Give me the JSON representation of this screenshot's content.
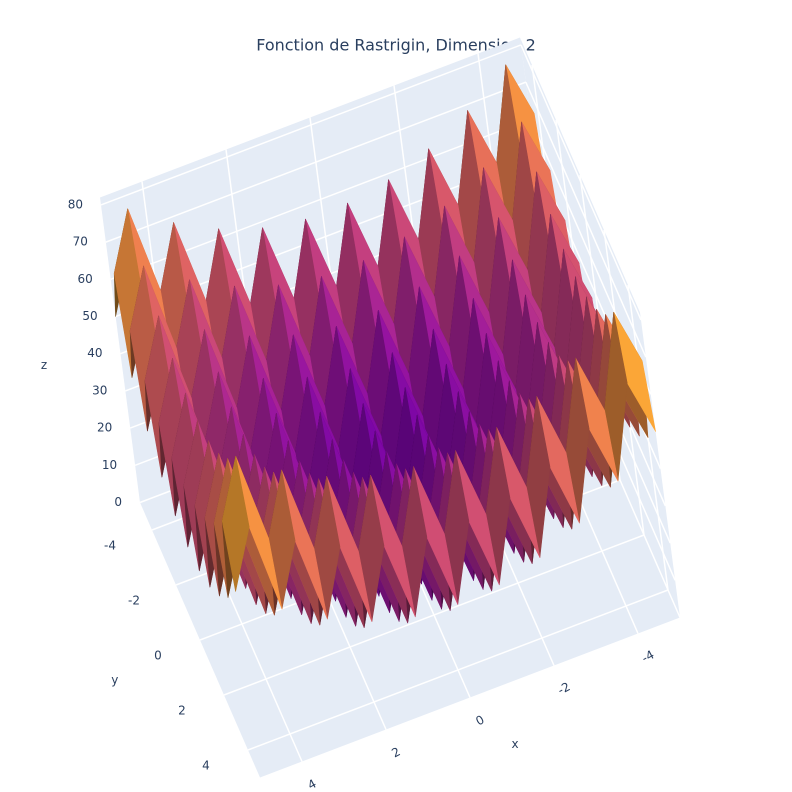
{
  "chart_data": {
    "type": "surface",
    "title": "Fonction de Rastrigin, Dimension 2",
    "xlabel": "x",
    "ylabel": "y",
    "zlabel": "z",
    "x": [
      -5,
      -4.5,
      -4,
      -3.5,
      -3,
      -2.5,
      -2,
      -1.5,
      -1,
      -0.5,
      0,
      0.5,
      1,
      1.5,
      2,
      2.5,
      3,
      3.5,
      4,
      4.5,
      5
    ],
    "y": [
      -5,
      -4.5,
      -4,
      -3.5,
      -3,
      -2.5,
      -2,
      -1.5,
      -1,
      -0.5,
      0,
      0.5,
      1,
      1.5,
      2,
      2.5,
      3,
      3.5,
      4,
      4.5,
      5
    ],
    "z": [
      [
        50,
        65.25,
        41,
        57.25,
        34,
        51.25,
        29,
        47.25,
        26,
        45.25,
        25,
        45.25,
        26,
        47.25,
        29,
        51.25,
        34,
        57.25,
        41,
        65.25,
        50
      ],
      [
        65.25,
        80.5,
        56.25,
        72.5,
        49.25,
        66.5,
        44.25,
        62.5,
        41.25,
        60.5,
        40.25,
        60.5,
        41.25,
        62.5,
        44.25,
        66.5,
        49.25,
        72.5,
        56.25,
        80.5,
        65.25
      ],
      [
        41,
        56.25,
        32,
        48.25,
        25,
        42.25,
        20,
        38.25,
        17,
        36.25,
        16,
        36.25,
        17,
        38.25,
        20,
        42.25,
        25,
        48.25,
        32,
        56.25,
        41
      ],
      [
        57.25,
        72.5,
        48.25,
        64.5,
        41.25,
        58.5,
        36.25,
        54.5,
        33.25,
        52.5,
        32.25,
        52.5,
        33.25,
        54.5,
        36.25,
        58.5,
        41.25,
        64.5,
        48.25,
        72.5,
        57.25
      ],
      [
        34,
        49.25,
        25,
        41.25,
        18,
        35.25,
        13,
        31.25,
        10,
        29.25,
        9,
        29.25,
        10,
        31.25,
        13,
        35.25,
        18,
        41.25,
        25,
        49.25,
        34
      ],
      [
        51.25,
        66.5,
        42.25,
        58.5,
        35.25,
        52.5,
        30.25,
        48.5,
        27.25,
        46.5,
        26.25,
        46.5,
        27.25,
        48.5,
        30.25,
        52.5,
        35.25,
        58.5,
        42.25,
        66.5,
        51.25
      ],
      [
        29,
        44.25,
        20,
        36.25,
        13,
        30.25,
        8,
        26.25,
        5,
        24.25,
        4,
        24.25,
        5,
        26.25,
        8,
        30.25,
        13,
        36.25,
        20,
        44.25,
        29
      ],
      [
        47.25,
        62.5,
        38.25,
        54.5,
        31.25,
        48.5,
        26.25,
        44.5,
        23.25,
        42.5,
        22.25,
        42.5,
        23.25,
        44.5,
        26.25,
        48.5,
        31.25,
        54.5,
        38.25,
        62.5,
        47.25
      ],
      [
        26,
        41.25,
        17,
        33.25,
        10,
        27.25,
        5,
        23.25,
        2,
        21.25,
        1,
        21.25,
        2,
        23.25,
        5,
        27.25,
        10,
        33.25,
        17,
        41.25,
        26
      ],
      [
        45.25,
        60.5,
        36.25,
        52.5,
        29.25,
        46.5,
        24.25,
        42.5,
        21.25,
        40.5,
        20.25,
        40.5,
        21.25,
        42.5,
        24.25,
        46.5,
        29.25,
        52.5,
        36.25,
        60.5,
        45.25
      ],
      [
        25,
        40.25,
        16,
        32.25,
        9,
        26.25,
        4,
        22.25,
        1,
        20.25,
        0,
        20.25,
        1,
        22.25,
        4,
        26.25,
        9,
        32.25,
        16,
        40.25,
        25
      ],
      [
        45.25,
        60.5,
        36.25,
        52.5,
        29.25,
        46.5,
        24.25,
        42.5,
        21.25,
        40.5,
        20.25,
        40.5,
        21.25,
        42.5,
        24.25,
        46.5,
        29.25,
        52.5,
        36.25,
        60.5,
        45.25
      ],
      [
        26,
        41.25,
        17,
        33.25,
        10,
        27.25,
        5,
        23.25,
        2,
        21.25,
        1,
        21.25,
        2,
        23.25,
        5,
        27.25,
        10,
        33.25,
        17,
        41.25,
        26
      ],
      [
        47.25,
        62.5,
        38.25,
        54.5,
        31.25,
        48.5,
        26.25,
        44.5,
        23.25,
        42.5,
        22.25,
        42.5,
        23.25,
        44.5,
        26.25,
        48.5,
        31.25,
        54.5,
        38.25,
        62.5,
        47.25
      ],
      [
        29,
        44.25,
        20,
        36.25,
        13,
        30.25,
        8,
        26.25,
        5,
        24.25,
        4,
        24.25,
        5,
        26.25,
        8,
        30.25,
        13,
        36.25,
        20,
        44.25,
        29
      ],
      [
        51.25,
        66.5,
        42.25,
        58.5,
        35.25,
        52.5,
        30.25,
        48.5,
        27.25,
        46.5,
        26.25,
        46.5,
        27.25,
        48.5,
        30.25,
        52.5,
        35.25,
        58.5,
        42.25,
        66.5,
        51.25
      ],
      [
        34,
        49.25,
        25,
        41.25,
        18,
        35.25,
        13,
        31.25,
        10,
        29.25,
        9,
        29.25,
        10,
        31.25,
        13,
        35.25,
        18,
        41.25,
        25,
        49.25,
        34
      ],
      [
        57.25,
        72.5,
        48.25,
        64.5,
        41.25,
        58.5,
        36.25,
        54.5,
        33.25,
        52.5,
        32.25,
        52.5,
        33.25,
        54.5,
        36.25,
        58.5,
        41.25,
        64.5,
        48.25,
        72.5,
        57.25
      ],
      [
        41,
        56.25,
        32,
        48.25,
        25,
        42.25,
        20,
        38.25,
        17,
        36.25,
        16,
        36.25,
        17,
        38.25,
        20,
        42.25,
        25,
        48.25,
        32,
        56.25,
        41
      ],
      [
        65.25,
        80.5,
        56.25,
        72.5,
        49.25,
        66.5,
        44.25,
        62.5,
        41.25,
        60.5,
        40.25,
        60.5,
        41.25,
        62.5,
        44.25,
        66.5,
        49.25,
        72.5,
        56.25,
        80.5,
        65.25
      ],
      [
        50,
        65.25,
        41,
        57.25,
        34,
        51.25,
        29,
        47.25,
        26,
        45.25,
        25,
        45.25,
        26,
        47.25,
        29,
        51.25,
        34,
        57.25,
        41,
        65.25,
        50
      ]
    ],
    "xlim": [
      -5,
      5
    ],
    "ylim": [
      -5,
      5
    ],
    "zlim": [
      0,
      82
    ],
    "xticks": [
      -4,
      -2,
      0,
      2,
      4
    ],
    "yticks": [
      -4,
      -2,
      0,
      2,
      4
    ],
    "zticks": [
      0,
      10,
      20,
      30,
      40,
      50,
      60,
      70,
      80
    ],
    "grid": true,
    "colorscale": [
      "#0d0887",
      "#46039f",
      "#7201a8",
      "#9c179e",
      "#bd3786",
      "#d8576b",
      "#ed7953",
      "#fb9f3a",
      "#fdca26",
      "#f0f921"
    ]
  }
}
